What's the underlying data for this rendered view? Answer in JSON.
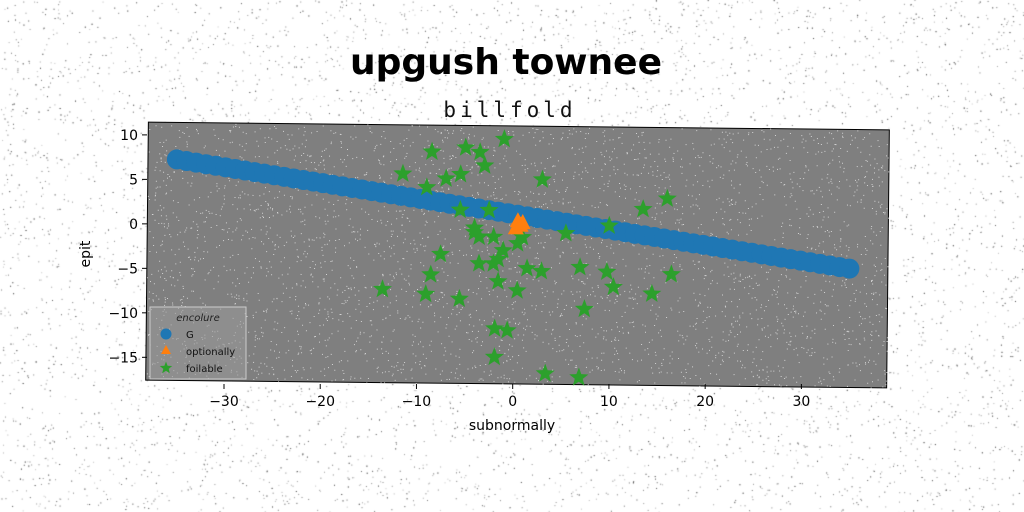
{
  "chart_data": {
    "type": "scatter",
    "title": "upgush townee",
    "subtitle": "billfold",
    "xlabel": "subnormally",
    "ylabel": "epit",
    "xlim": [
      -38,
      39
    ],
    "ylim": [
      -18,
      11
    ],
    "xticks": [
      -30,
      -20,
      -10,
      0,
      10,
      20,
      30
    ],
    "yticks": [
      10,
      5,
      0,
      -5,
      -10,
      -15
    ],
    "grid": false,
    "legend": {
      "title": "encolure",
      "placement": "lower-left"
    },
    "colors": {
      "axes_bg": "#7f7f7f",
      "G": "#1f77b4",
      "optionally": "#ff7f0e",
      "foilable": "#2ca02c"
    },
    "series": [
      {
        "name": "G",
        "marker": "circle",
        "x_range": [
          -35,
          35
        ],
        "count": 70,
        "line": {
          "slope": -0.164,
          "intercept": 1.1
        }
      },
      {
        "name": "optionally",
        "marker": "triangle",
        "points": [
          [
            0.5,
            0.3
          ],
          [
            0.8,
            -0.2
          ],
          [
            0.3,
            -0.5
          ],
          [
            1.0,
            0.1
          ]
        ]
      },
      {
        "name": "foilable",
        "marker": "star",
        "points": [
          [
            -1,
            9.5
          ],
          [
            -8.5,
            8
          ],
          [
            -5,
            8.5
          ],
          [
            -3.5,
            8
          ],
          [
            -3,
            6.5
          ],
          [
            -11.5,
            5.5
          ],
          [
            -7,
            5
          ],
          [
            -5.5,
            5.5
          ],
          [
            -9,
            4
          ],
          [
            3,
            5
          ],
          [
            16,
            3
          ],
          [
            13.5,
            1.8
          ],
          [
            -5.5,
            1.5
          ],
          [
            -2.5,
            1.5
          ],
          [
            10,
            -0.1
          ],
          [
            5.5,
            -1
          ],
          [
            -4,
            -0.5
          ],
          [
            -3.5,
            -1.5
          ],
          [
            -2,
            -1.5
          ],
          [
            1,
            -1.5
          ],
          [
            -7.5,
            -3.5
          ],
          [
            -3.5,
            -4.5
          ],
          [
            -2,
            -4.5
          ],
          [
            -1.5,
            -4
          ],
          [
            -1,
            -3
          ],
          [
            1.5,
            -5
          ],
          [
            3,
            -5.3
          ],
          [
            7,
            -4.8
          ],
          [
            9.8,
            -5.3
          ],
          [
            16.5,
            -5.5
          ],
          [
            -8.5,
            -5.8
          ],
          [
            -1.5,
            -6.5
          ],
          [
            0.5,
            -7.5
          ],
          [
            10.5,
            -7
          ],
          [
            14.5,
            -7.7
          ],
          [
            -13.5,
            -7.5
          ],
          [
            -9,
            -8
          ],
          [
            -5.5,
            -8.5
          ],
          [
            7.5,
            -9.5
          ],
          [
            -1.8,
            -11.8
          ],
          [
            -0.5,
            -12
          ],
          [
            -1.8,
            -15
          ],
          [
            3.5,
            -16.8
          ],
          [
            7,
            -17.2
          ],
          [
            -4,
            -1
          ],
          [
            0.5,
            -2.2
          ]
        ]
      }
    ]
  }
}
